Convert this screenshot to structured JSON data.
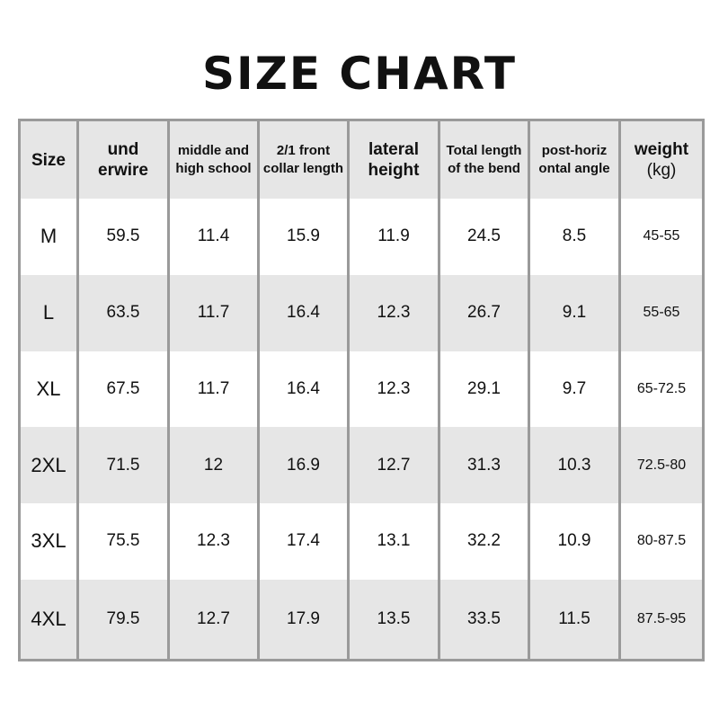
{
  "title": "SIZE CHART",
  "headers": [
    {
      "l1": "Size",
      "l2": "",
      "big": true
    },
    {
      "l1": "und",
      "l2": "erwire",
      "big": true
    },
    {
      "l1": "middle and",
      "l2": "high school",
      "big": false
    },
    {
      "l1": "2/1 front",
      "l2": "collar length",
      "big": false
    },
    {
      "l1": "lateral",
      "l2": "height",
      "big": true
    },
    {
      "l1": "Total length",
      "l2": "of the bend",
      "big": false
    },
    {
      "l1": "post-horiz",
      "l2": "ontal angle",
      "big": false
    },
    {
      "l1": "weight",
      "l2": "(kg)",
      "big": true
    }
  ],
  "rows": [
    [
      "M",
      "59.5",
      "11.4",
      "15.9",
      "11.9",
      "24.5",
      "8.5",
      "45-55"
    ],
    [
      "L",
      "63.5",
      "11.7",
      "16.4",
      "12.3",
      "26.7",
      "9.1",
      "55-65"
    ],
    [
      "XL",
      "67.5",
      "11.7",
      "16.4",
      "12.3",
      "29.1",
      "9.7",
      "65-72.5"
    ],
    [
      "2XL",
      "71.5",
      "12",
      "16.9",
      "12.7",
      "31.3",
      "10.3",
      "72.5-80"
    ],
    [
      "3XL",
      "75.5",
      "12.3",
      "17.4",
      "13.1",
      "32.2",
      "10.9",
      "80-87.5"
    ],
    [
      "4XL",
      "79.5",
      "12.7",
      "17.9",
      "13.5",
      "33.5",
      "11.5",
      "87.5-95"
    ]
  ],
  "colors": {
    "border": "#9a9a9a",
    "shade": "#e6e6e6"
  }
}
